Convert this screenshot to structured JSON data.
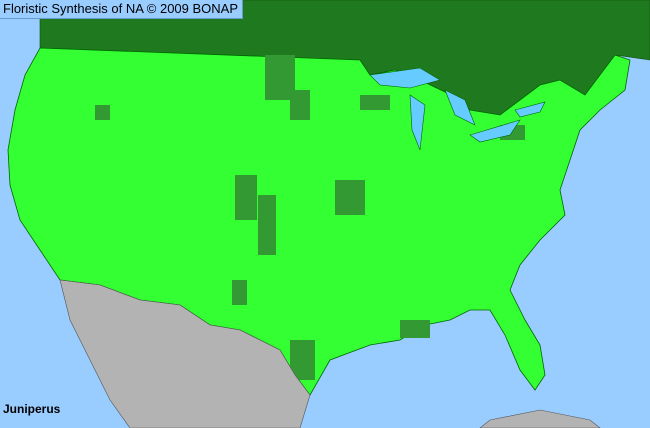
{
  "header": {
    "title": "Floristic Synthesis of NA © 2009 BONAP"
  },
  "map": {
    "taxon": "Juniperus",
    "colors": {
      "ocean": "#99ccff",
      "lakes": "#66ccff",
      "canada": "#1f7a1f",
      "present_county": "#33ff33",
      "county_borders": "#006600",
      "absent_county": "#339933",
      "mexico": "#b3b3b3",
      "cuba": "#b3b3b3"
    }
  }
}
